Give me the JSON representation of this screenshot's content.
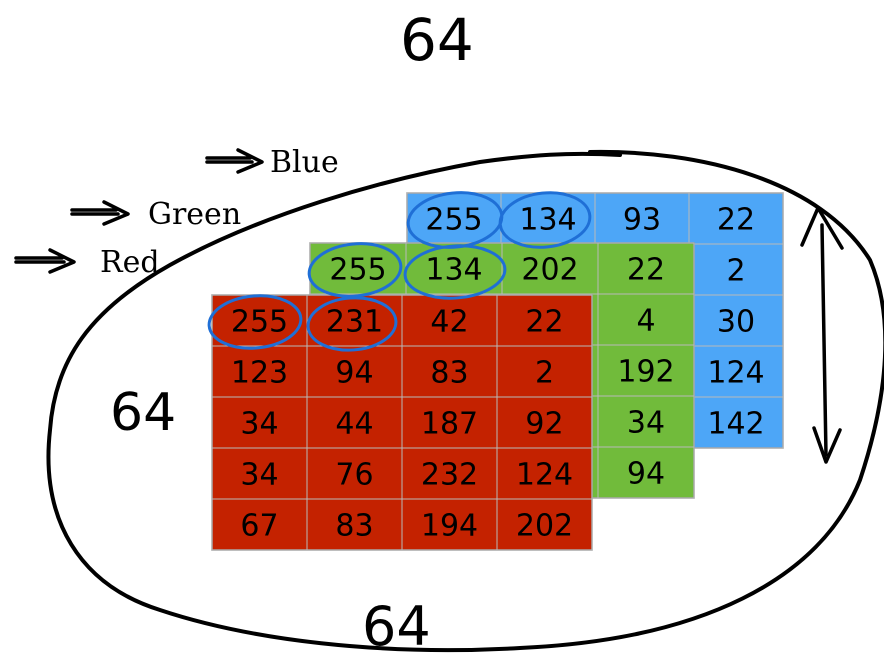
{
  "annotations": {
    "top_size": "64",
    "left_size": "64",
    "bottom_size": "64"
  },
  "channels": {
    "blue": {
      "label": "Blue",
      "color": "#4da6f7",
      "values": [
        [
          "255",
          "134",
          "93",
          "22"
        ],
        [
          "",
          "",
          "",
          "2"
        ],
        [
          "",
          "",
          "",
          "30"
        ],
        [
          "",
          "",
          "",
          "124"
        ],
        [
          "",
          "",
          "",
          "142"
        ]
      ]
    },
    "green": {
      "label": "Green",
      "color": "#71bb3b",
      "values": [
        [
          "255",
          "134",
          "202",
          "22"
        ],
        [
          "",
          "",
          "",
          "4"
        ],
        [
          "",
          "",
          "",
          "192"
        ],
        [
          "",
          "",
          "",
          "34"
        ],
        [
          "",
          "",
          "",
          "94"
        ]
      ]
    },
    "red": {
      "label": "Red",
      "color": "#c42200",
      "values": [
        [
          "255",
          "231",
          "42",
          "22"
        ],
        [
          "123",
          "94",
          "83",
          "2"
        ],
        [
          "34",
          "44",
          "187",
          "92"
        ],
        [
          "34",
          "76",
          "232",
          "124"
        ],
        [
          "67",
          "83",
          "194",
          "202"
        ]
      ]
    }
  }
}
